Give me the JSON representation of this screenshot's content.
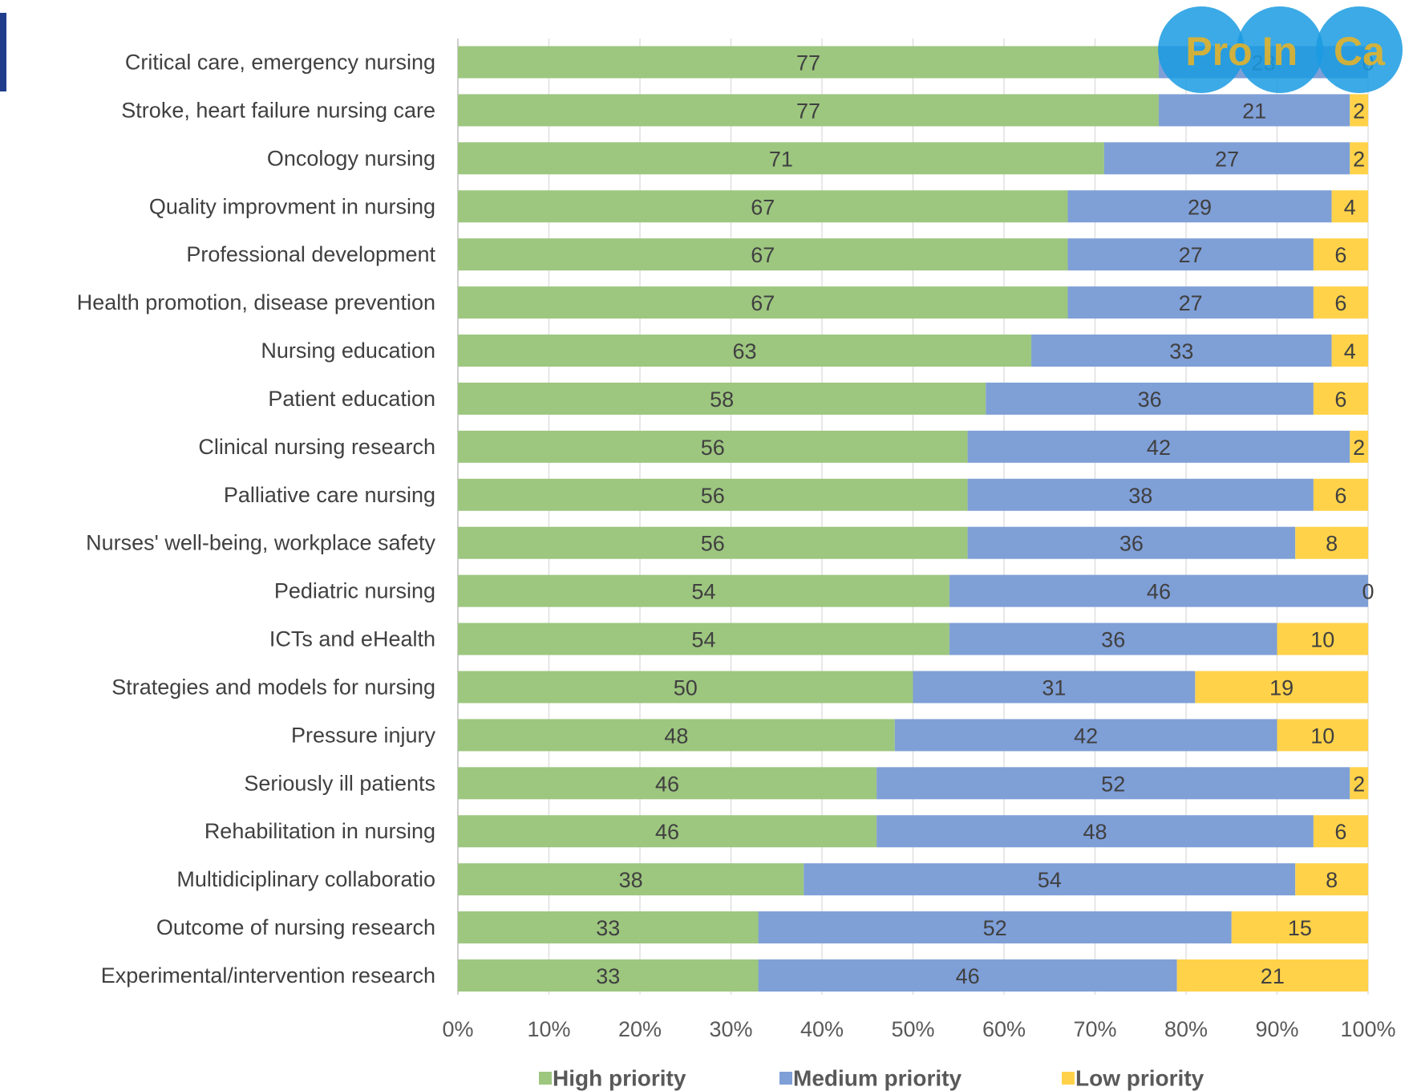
{
  "chart_data": {
    "type": "stacked_barh",
    "categories": [
      "Critical care, emergency nursing",
      "Stroke, heart failure nursing care",
      "Oncology nursing",
      "Quality improvment in nursing",
      "Professional development",
      "Health promotion, disease prevention",
      "Nursing education",
      "Patient education",
      "Clinical nursing research",
      "Palliative care nursing",
      "Nurses' well-being, workplace safety",
      "Pediatric nursing",
      "ICTs and eHealth",
      "Strategies and models for nursing",
      "Pressure injury",
      "Seriously ill patients",
      "Rehabilitation in nursing",
      "Multidiciplinary collaboratio",
      "Outcome of nursing research",
      "Experimental/intervention research"
    ],
    "series": [
      {
        "name": "High priority",
        "color": "#9dc67f",
        "values": [
          77,
          77,
          71,
          67,
          67,
          67,
          63,
          58,
          56,
          56,
          56,
          54,
          54,
          50,
          48,
          46,
          46,
          38,
          33,
          33
        ]
      },
      {
        "name": "Medium priority",
        "color": "#7f9fd7",
        "values": [
          23,
          21,
          27,
          29,
          27,
          27,
          33,
          36,
          42,
          38,
          36,
          46,
          36,
          31,
          42,
          52,
          48,
          54,
          52,
          46
        ]
      },
      {
        "name": "Low priority",
        "color": "#ffd24a",
        "values": [
          0,
          2,
          2,
          4,
          6,
          6,
          4,
          6,
          2,
          6,
          8,
          0,
          10,
          19,
          10,
          2,
          6,
          8,
          15,
          21
        ]
      }
    ],
    "xlim": [
      0,
      100
    ],
    "xticks": [
      {
        "value": 0,
        "label": "0%"
      },
      {
        "value": 10,
        "label": "10%"
      },
      {
        "value": 20,
        "label": "20%"
      },
      {
        "value": 30,
        "label": "30%"
      },
      {
        "value": 40,
        "label": "40%"
      },
      {
        "value": 50,
        "label": "50%"
      },
      {
        "value": 60,
        "label": "60%"
      },
      {
        "value": 70,
        "label": "70%"
      },
      {
        "value": 80,
        "label": "80%"
      },
      {
        "value": 90,
        "label": "90%"
      },
      {
        "value": 100,
        "label": "100%"
      }
    ],
    "grid": true,
    "legend": "bottom",
    "logo": [
      "Pro",
      "In",
      "Ca"
    ]
  }
}
